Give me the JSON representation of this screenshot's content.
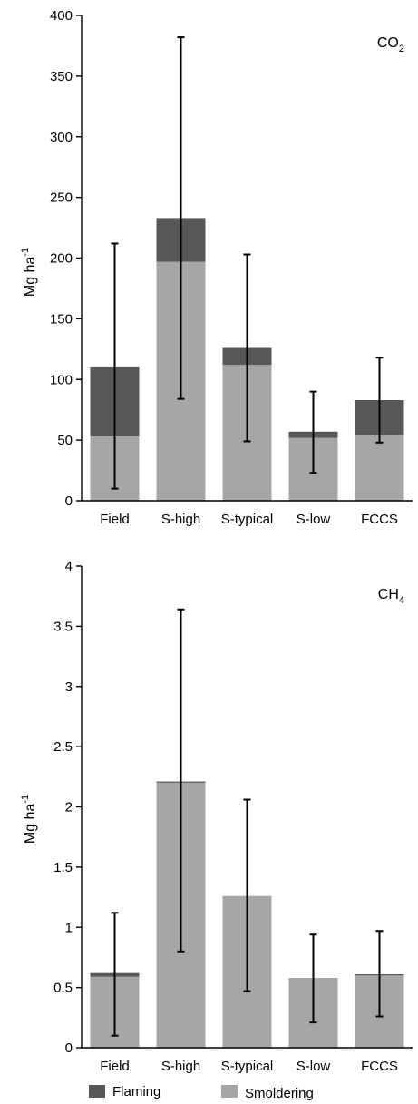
{
  "chart_data": [
    {
      "type": "bar",
      "stacked": true,
      "panel_label": "CO",
      "panel_label_sub": "2",
      "ylabel": "Mg ha",
      "ylabel_sup": "-1",
      "ylim": [
        0,
        400
      ],
      "yticks": [
        0,
        50,
        100,
        150,
        200,
        250,
        300,
        350,
        400
      ],
      "categories": [
        "Field",
        "S-high",
        "S-typical",
        "S-low",
        "FCCS"
      ],
      "series": [
        {
          "name": "Smoldering",
          "values": [
            53,
            197,
            112,
            52,
            54
          ]
        },
        {
          "name": "Flaming",
          "values": [
            57,
            36,
            14,
            5,
            29
          ]
        }
      ],
      "error_bars": [
        {
          "low": 10,
          "high": 212
        },
        {
          "low": 84,
          "high": 382
        },
        {
          "low": 49,
          "high": 203
        },
        {
          "low": 23,
          "high": 90
        },
        {
          "low": 48,
          "high": 118
        }
      ]
    },
    {
      "type": "bar",
      "stacked": true,
      "panel_label": "CH",
      "panel_label_sub": "4",
      "ylabel": "Mg ha",
      "ylabel_sup": "-1",
      "ylim": [
        0,
        4
      ],
      "yticks": [
        0,
        0.5,
        1,
        1.5,
        2,
        2.5,
        3,
        3.5,
        4
      ],
      "categories": [
        "Field",
        "S-high",
        "S-typical",
        "S-low",
        "FCCS"
      ],
      "series": [
        {
          "name": "Smoldering",
          "values": [
            0.59,
            2.2,
            1.26,
            0.58,
            0.6
          ]
        },
        {
          "name": "Flaming",
          "values": [
            0.03,
            0.01,
            0.0,
            0.0,
            0.01
          ]
        }
      ],
      "error_bars": [
        {
          "low": 0.1,
          "high": 1.12
        },
        {
          "low": 0.8,
          "high": 3.64
        },
        {
          "low": 0.47,
          "high": 2.06
        },
        {
          "low": 0.21,
          "high": 0.94
        },
        {
          "low": 0.26,
          "high": 0.97
        }
      ]
    }
  ],
  "legend": {
    "placement": "bottom",
    "items": [
      {
        "label": "Flaming",
        "color": "#575757"
      },
      {
        "label": "Smoldering",
        "color": "#a6a6a6"
      }
    ]
  },
  "colors": {
    "flaming": "#575757",
    "smoldering": "#a6a6a6",
    "axis": "#000000"
  }
}
